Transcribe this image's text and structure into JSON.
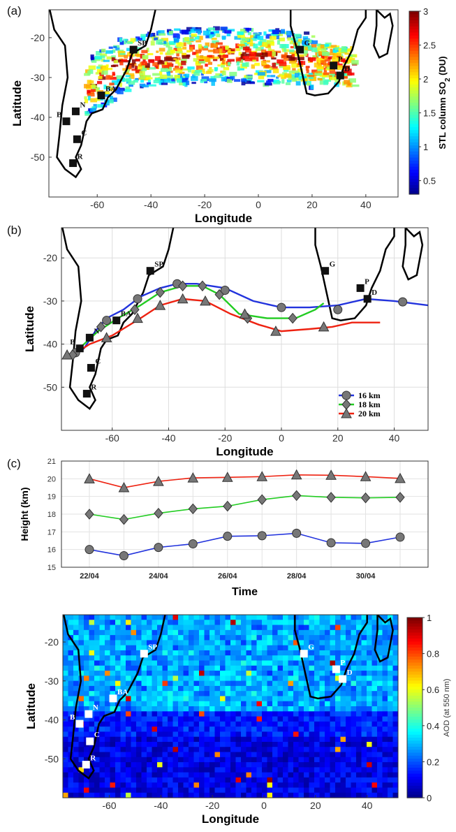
{
  "panel_labels": [
    "(a)",
    "(b)",
    "(c)"
  ],
  "station_marks": [
    {
      "code": "SP",
      "lon": -46.5,
      "lat": -23.0
    },
    {
      "code": "BA",
      "lon": -58.5,
      "lat": -34.5
    },
    {
      "code": "N",
      "lon": -68.0,
      "lat": -38.5
    },
    {
      "code": "B",
      "lon": -71.5,
      "lat": -41.0
    },
    {
      "code": "C",
      "lon": -67.5,
      "lat": -45.5
    },
    {
      "code": "R",
      "lon": -69.0,
      "lat": -51.5
    },
    {
      "code": "G",
      "lon": 15.5,
      "lat": -23.0
    },
    {
      "code": "P",
      "lon": 28.0,
      "lat": -27.0
    },
    {
      "code": "D",
      "lon": 30.5,
      "lat": -29.5
    }
  ],
  "colors": {
    "blue": "#2233dd",
    "green": "#22cc22",
    "red": "#ee2211",
    "marker_gray": "#777777",
    "coast": "#000000"
  },
  "chart_data": [
    {
      "id": "a",
      "type": "heatmap",
      "xlabel": "Longitude",
      "ylabel": "Latitude",
      "xlim": [
        -78,
        52
      ],
      "ylim": [
        -60,
        -13
      ],
      "xticks": [
        -60,
        -40,
        -20,
        0,
        20,
        40
      ],
      "yticks": [
        -20,
        -30,
        -40,
        -50
      ],
      "colorbar": {
        "label": "STL column SO",
        "label_sub": "2",
        "label_tail": " (DU)",
        "range": [
          0.3,
          3
        ],
        "ticks": [
          0.5,
          1,
          1.5,
          2,
          2.5,
          3
        ]
      },
      "plume": {
        "lon_start": -65,
        "lon_end": 35,
        "lat_center": -27,
        "lat_half_width": 7
      }
    },
    {
      "id": "b",
      "type": "line",
      "xlabel": "Longitude",
      "ylabel": "Latitude",
      "xlim": [
        -78,
        52
      ],
      "ylim": [
        -60,
        -13
      ],
      "xticks": [
        -60,
        -40,
        -20,
        0,
        20,
        40
      ],
      "yticks": [
        -20,
        -30,
        -40,
        -50
      ],
      "grid": true,
      "legend_position": "bottom-right",
      "series": [
        {
          "name": "16 km",
          "color": "#2233dd",
          "marker": "circle",
          "line": [
            [
              -75,
              -43
            ],
            [
              -70,
              -41
            ],
            [
              -66,
              -37
            ],
            [
              -62,
              -34
            ],
            [
              -56,
              -32
            ],
            [
              -50,
              -29
            ],
            [
              -43,
              -27
            ],
            [
              -37,
              -26
            ],
            [
              -30,
              -26
            ],
            [
              -20,
              -27
            ],
            [
              -10,
              -30
            ],
            [
              0,
              -31.5
            ],
            [
              10,
              -31.5
            ],
            [
              20,
              -31
            ],
            [
              30,
              -29.5
            ],
            [
              40,
              -30
            ],
            [
              52,
              -31
            ]
          ],
          "markers": [
            [
              -73,
              -42
            ],
            [
              -62,
              -34.5
            ],
            [
              -51,
              -29.5
            ],
            [
              -37,
              -26
            ],
            [
              -20,
              -27.5
            ],
            [
              0,
              -31.5
            ],
            [
              20,
              -32
            ],
            [
              43,
              -30.2
            ]
          ]
        },
        {
          "name": "18 km",
          "color": "#22cc22",
          "marker": "diamond",
          "line": [
            [
              -75,
              -43
            ],
            [
              -70,
              -40
            ],
            [
              -65,
              -37
            ],
            [
              -58,
              -34
            ],
            [
              -50,
              -31
            ],
            [
              -43,
              -28
            ],
            [
              -35,
              -26.5
            ],
            [
              -28,
              -26.5
            ],
            [
              -22,
              -28.5
            ],
            [
              -15,
              -33
            ],
            [
              -5,
              -34
            ],
            [
              5,
              -34
            ],
            [
              12,
              -32
            ],
            [
              15,
              -30.5
            ]
          ],
          "markers": [
            [
              -74,
              -42.5
            ],
            [
              -64,
              -36
            ],
            [
              -52,
              -32
            ],
            [
              -43,
              -28
            ],
            [
              -35,
              -26.5
            ],
            [
              -28,
              -26.5
            ],
            [
              -22,
              -28.5
            ],
            [
              -12,
              -34
            ],
            [
              4,
              -34
            ]
          ]
        },
        {
          "name": "20 km",
          "color": "#ee2211",
          "marker": "triangle",
          "line": [
            [
              -75,
              -43
            ],
            [
              -68,
              -40
            ],
            [
              -60,
              -38
            ],
            [
              -50,
              -34
            ],
            [
              -43,
              -31
            ],
            [
              -35,
              -29.5
            ],
            [
              -27,
              -30
            ],
            [
              -18,
              -33
            ],
            [
              -8,
              -35.5
            ],
            [
              0,
              -37
            ],
            [
              10,
              -36.5
            ],
            [
              18,
              -36
            ],
            [
              25,
              -35
            ],
            [
              35,
              -35
            ]
          ],
          "markers": [
            [
              -76,
              -42.5
            ],
            [
              -62,
              -38.5
            ],
            [
              -51,
              -34
            ],
            [
              -43,
              -31
            ],
            [
              -35,
              -29.5
            ],
            [
              -27,
              -30
            ],
            [
              -13,
              -33
            ],
            [
              -2,
              -37
            ],
            [
              15,
              -36
            ]
          ]
        }
      ]
    },
    {
      "id": "c",
      "type": "line",
      "xlabel": "Time",
      "ylabel": "Height (km)",
      "x": [
        "22/04",
        "23/04",
        "24/04",
        "25/04",
        "26/04",
        "27/04",
        "28/04",
        "29/04",
        "30/04",
        "01/05"
      ],
      "xtick_labels": [
        "22/04",
        "24/04",
        "26/04",
        "28/04",
        "30/04"
      ],
      "ylim": [
        15,
        21
      ],
      "yticks": [
        15,
        16,
        17,
        18,
        19,
        20,
        21
      ],
      "grid": true,
      "series": [
        {
          "name": "16 km",
          "color": "#2233dd",
          "marker": "circle",
          "values": [
            16.0,
            15.65,
            16.12,
            16.32,
            16.75,
            16.78,
            16.92,
            16.38,
            16.35,
            16.7
          ]
        },
        {
          "name": "18 km",
          "color": "#22cc22",
          "marker": "diamond",
          "values": [
            18.0,
            17.7,
            18.05,
            18.3,
            18.45,
            18.82,
            19.05,
            18.95,
            18.92,
            18.95
          ]
        },
        {
          "name": "20 km",
          "color": "#ee2211",
          "marker": "triangle",
          "values": [
            20.0,
            19.5,
            19.85,
            20.05,
            20.08,
            20.12,
            20.22,
            20.2,
            20.12,
            20.02
          ]
        }
      ]
    },
    {
      "id": "d",
      "type": "heatmap",
      "xlabel": "Longitude",
      "ylabel": "Latitude",
      "xlim": [
        -78,
        52
      ],
      "ylim": [
        -60,
        -13
      ],
      "xticks": [
        -60,
        -40,
        -20,
        0,
        20,
        40
      ],
      "yticks": [
        -20,
        -30,
        -40,
        -50
      ],
      "colorbar": {
        "label": "AOD (at 550 nm)",
        "range": [
          0,
          1
        ],
        "ticks": [
          0,
          0.2,
          0.4,
          0.6,
          0.8,
          1
        ]
      }
    }
  ]
}
